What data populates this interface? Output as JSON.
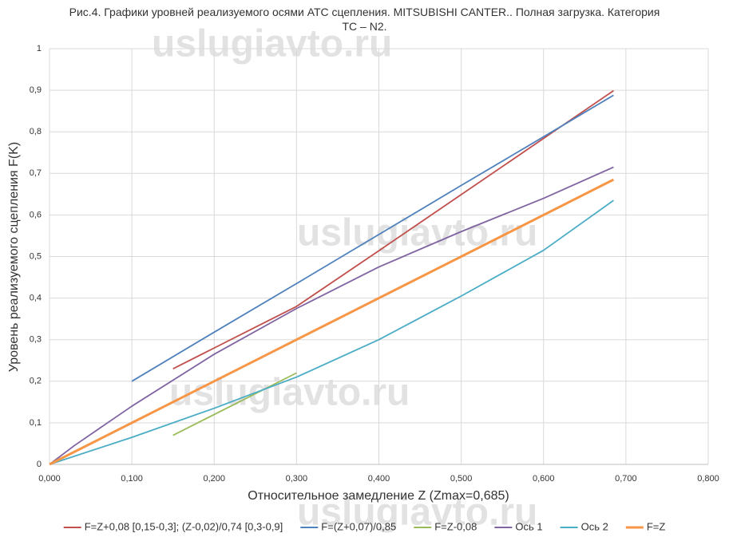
{
  "chart_data": {
    "type": "line",
    "title": "Рис.4. Графики уровней реализуемого осями АТС сцепления. MITSUBISHI CANTER.. Полная загрузка. Категория ТС – N2.",
    "watermark": "uslugiavto.ru",
    "x_label": "Относительное замедление Z (Zmax=0,685)",
    "y_label": "Уровень реализуемого сцепления F(K)",
    "xlim": [
      0,
      0.8
    ],
    "xticks": [
      {
        "value": 0,
        "label": "0,000"
      },
      {
        "value": 0.1,
        "label": "0,100"
      },
      {
        "value": 0.2,
        "label": "0,200"
      },
      {
        "value": 0.3,
        "label": "0,300"
      },
      {
        "value": 0.4,
        "label": "0,400"
      },
      {
        "value": 0.5,
        "label": "0,500"
      },
      {
        "value": 0.6,
        "label": "0,600"
      },
      {
        "value": 0.7,
        "label": "0,700"
      },
      {
        "value": 0.8,
        "label": "0,800"
      }
    ],
    "ylim": [
      0,
      1
    ],
    "yticks": [
      0,
      {
        "value": 0.1,
        "label": "0,1"
      },
      {
        "value": 0.2,
        "label": "0,2"
      },
      {
        "value": 0.3,
        "label": "0,3"
      },
      {
        "value": 0.4,
        "label": "0,4"
      },
      {
        "value": 0.5,
        "label": "0,5"
      },
      {
        "value": 0.6,
        "label": "0,6"
      },
      {
        "value": 0.7,
        "label": "0,7"
      },
      {
        "value": 0.8,
        "label": "0,8"
      },
      {
        "value": 0.9,
        "label": "0,9"
      },
      1
    ],
    "grid": true,
    "legend": "bottom",
    "series": [
      {
        "name": "F=Z+0,08 [0,15-0,3]; (Z-0,02)/0,74 [0,3-0,9]",
        "color": "#c0504d",
        "x": [
          0.15,
          0.2,
          0.25,
          0.3,
          0.4,
          0.5,
          0.6,
          0.685
        ],
        "values": [
          0.23,
          0.28,
          0.33,
          0.38,
          0.514,
          0.649,
          0.784,
          0.899
        ]
      },
      {
        "name": "F=(Z+0,07)/0,85",
        "color": "#4f81bd",
        "x": [
          0.1,
          0.2,
          0.3,
          0.4,
          0.5,
          0.6,
          0.685
        ],
        "values": [
          0.2,
          0.318,
          0.435,
          0.553,
          0.671,
          0.788,
          0.888
        ]
      },
      {
        "name": "F=Z-0,08",
        "color": "#9bbb59",
        "x": [
          0.15,
          0.3
        ],
        "values": [
          0.07,
          0.22
        ]
      },
      {
        "name": "Ось 1",
        "color": "#8064a2",
        "x": [
          0,
          0.03,
          0.1,
          0.2,
          0.3,
          0.4,
          0.5,
          0.6,
          0.685
        ],
        "values": [
          0,
          0.045,
          0.14,
          0.265,
          0.375,
          0.475,
          0.56,
          0.64,
          0.715
        ]
      },
      {
        "name": "Ось 2",
        "color": "#4bacc6",
        "x": [
          0,
          0.1,
          0.2,
          0.3,
          0.4,
          0.5,
          0.6,
          0.685
        ],
        "values": [
          0,
          0.065,
          0.135,
          0.21,
          0.3,
          0.405,
          0.515,
          0.635
        ]
      },
      {
        "name": "F=Z",
        "color": "#f79646",
        "width": 3,
        "x": [
          0,
          0.685
        ],
        "values": [
          0,
          0.685
        ]
      }
    ]
  }
}
